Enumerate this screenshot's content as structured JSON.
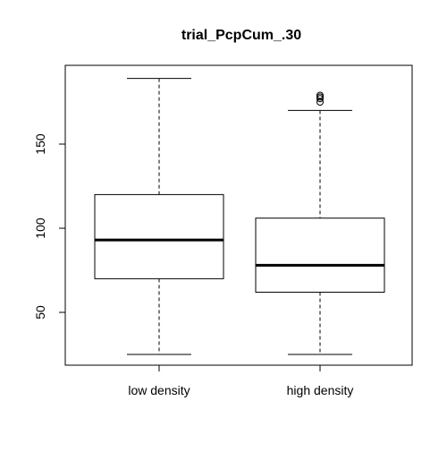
{
  "chart_data": {
    "type": "boxplot",
    "title": "trial_PcpCum_.30",
    "xlabel": "",
    "ylabel": "",
    "categories": [
      "low density",
      "high density"
    ],
    "ylim": [
      20,
      210
    ],
    "y_ticks": [
      50,
      100,
      150
    ],
    "grid": false,
    "boxes": [
      {
        "category": "low density",
        "whisker_low": 25,
        "q1": 70,
        "median": 93,
        "q3": 120,
        "whisker_high": 189,
        "outliers": []
      },
      {
        "category": "high density",
        "whisker_low": 25,
        "q1": 62,
        "median": 78,
        "q3": 106,
        "whisker_high": 170,
        "outliers": [
          175,
          177,
          178,
          179
        ]
      }
    ]
  }
}
